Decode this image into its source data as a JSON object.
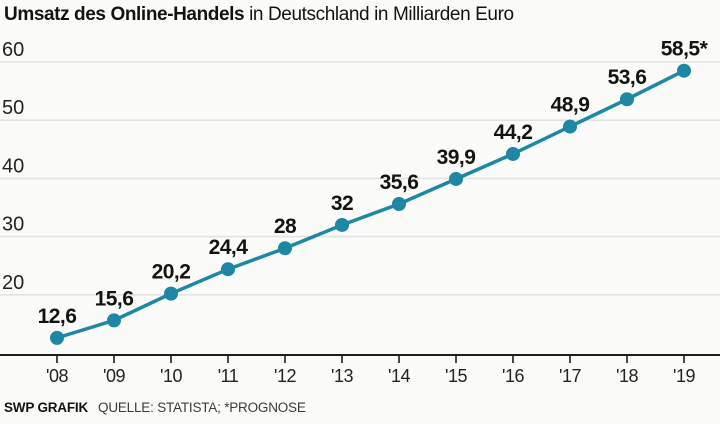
{
  "title": {
    "bold": "Umsatz des Online-Handels",
    "rest": " in Deutschland in Milliarden Euro"
  },
  "chart_data": {
    "type": "line",
    "title": "Umsatz des Online-Handels in Deutschland in Milliarden Euro",
    "x": [
      "'08",
      "'09",
      "'10",
      "'11",
      "'12",
      "'13",
      "'14",
      "'15",
      "'16",
      "'17",
      "'18",
      "'19"
    ],
    "values": [
      12.6,
      15.6,
      20.2,
      24.4,
      28,
      32,
      35.6,
      39.9,
      44.2,
      48.9,
      53.6,
      58.5
    ],
    "point_labels": [
      "12,6",
      "15,6",
      "20,2",
      "24,4",
      "28",
      "32",
      "35,6",
      "39,9",
      "44,2",
      "48,9",
      "53,6",
      "58,5*"
    ],
    "xlabel": "",
    "ylabel": "Milliarden Euro",
    "ylim": [
      10,
      62
    ],
    "yticks": [
      20,
      30,
      40,
      50,
      60
    ],
    "grid": true,
    "legend": false,
    "annotation": "*PROGNOSE"
  },
  "footer": {
    "brand": "SWP GRAFIK",
    "source": "QUELLE: STATISTA; *PROGNOSE"
  },
  "colors": {
    "line": "#1e87a3",
    "grid": "#e4e4e1",
    "axis": "#1d1d1b",
    "text": "#23231f",
    "label": "#14140f",
    "background": "#fbfbf9"
  }
}
